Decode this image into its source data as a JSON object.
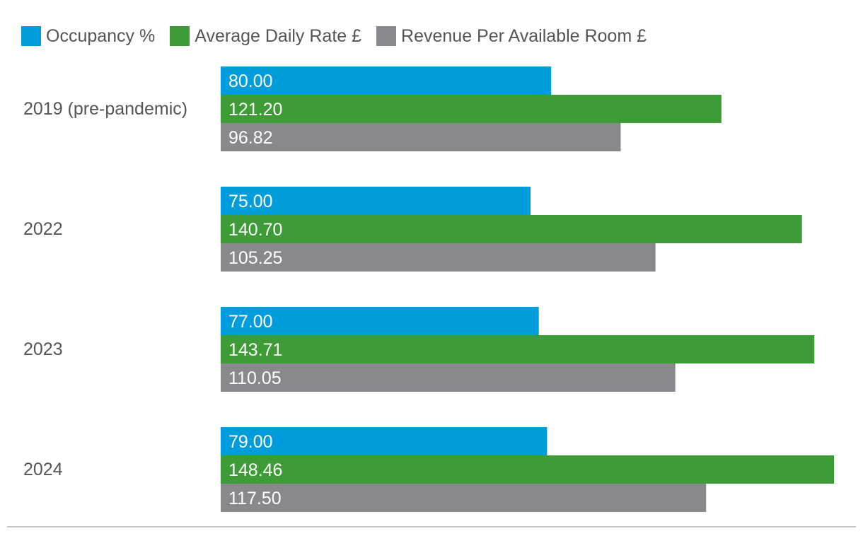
{
  "chart_data": {
    "type": "bar",
    "orientation": "horizontal",
    "categories": [
      "2019 (pre-pandemic)",
      "2022",
      "2023",
      "2024"
    ],
    "series": [
      {
        "name": "Occupancy %",
        "color": "#009ddc",
        "values": [
          80.0,
          75.0,
          77.0,
          79.0
        ],
        "labels": [
          "80.00",
          "75.00",
          "77.00",
          "79.00"
        ]
      },
      {
        "name": "Average Daily Rate £",
        "color": "#3d9c35",
        "values": [
          121.2,
          140.7,
          143.71,
          148.46
        ],
        "labels": [
          "121.20",
          "140.70",
          "143.71",
          "148.46"
        ]
      },
      {
        "name": "Revenue Per Available Room £",
        "color": "#87898c",
        "values": [
          96.82,
          105.25,
          110.05,
          117.5
        ],
        "labels": [
          "96.82",
          "105.25",
          "110.05",
          "117.50"
        ]
      }
    ],
    "xlim": [
      0,
      150
    ],
    "legend_position": "top-left",
    "grid": false,
    "title": "",
    "xlabel": "",
    "ylabel": ""
  }
}
